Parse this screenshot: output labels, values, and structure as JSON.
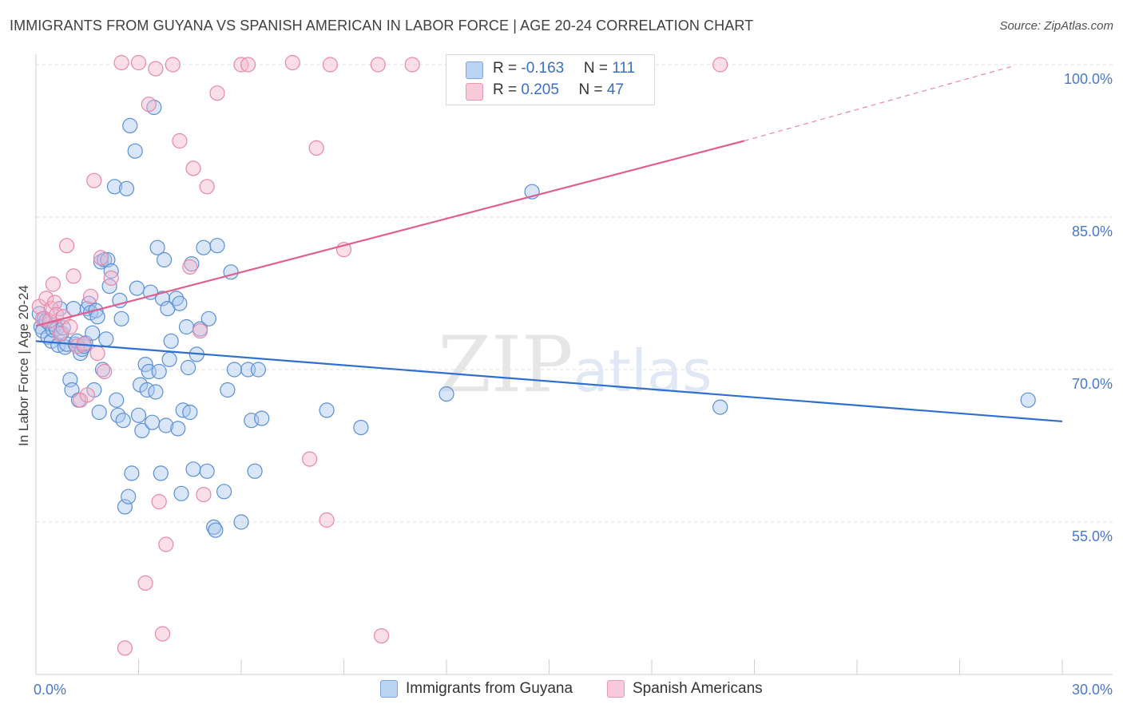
{
  "title": "IMMIGRANTS FROM GUYANA VS SPANISH AMERICAN IN LABOR FORCE | AGE 20-24 CORRELATION CHART",
  "source": "Source: ZipAtlas.com",
  "watermark": "ZIPatlas",
  "colors": {
    "blue_fill": "#a9c8f0",
    "blue_stroke": "#5b8fd6",
    "blue_line": "#2f6fd0",
    "pink_fill": "#f5b8cc",
    "pink_stroke": "#e887a7",
    "pink_line": "#e05f8d",
    "axis_text": "#4a78c8"
  },
  "legend": {
    "rows": [
      {
        "r_label": "R = ",
        "r_value": "-0.163",
        "n_label": "N = ",
        "n_value": "111"
      },
      {
        "r_label": "R = ",
        "r_value": "0.205",
        "n_label": "N = ",
        "n_value": "47"
      }
    ]
  },
  "bottom_legend": [
    "Immigrants from Guyana",
    "Spanish Americans"
  ],
  "chart_data": {
    "type": "scatter",
    "xlabel": "",
    "ylabel": "In Labor Force | Age 20-24",
    "xlim": [
      0,
      30
    ],
    "ylim": [
      40,
      102
    ],
    "x_tick_labels": [
      "0.0%",
      "30.0%"
    ],
    "y_ticks": [
      55,
      70,
      85,
      100
    ],
    "y_tick_labels": [
      "55.0%",
      "70.0%",
      "85.0%",
      "100.0%"
    ],
    "grid": "horizontal dashed",
    "legend_position": "top-center",
    "series": [
      {
        "name": "Immigrants from Guyana",
        "r": -0.163,
        "n": 111,
        "trend": {
          "x": [
            0,
            30
          ],
          "y": [
            72.8,
            64.9
          ],
          "dashed_after": null
        },
        "points": [
          [
            0.1,
            75.5
          ],
          [
            0.15,
            74.2
          ],
          [
            0.2,
            73.8
          ],
          [
            0.25,
            75.0
          ],
          [
            0.3,
            74.8
          ],
          [
            0.35,
            73.2
          ],
          [
            0.4,
            74.5
          ],
          [
            0.45,
            72.8
          ],
          [
            0.5,
            73.9
          ],
          [
            0.55,
            74.4
          ],
          [
            0.6,
            74.0
          ],
          [
            0.65,
            72.4
          ],
          [
            0.7,
            76.0
          ],
          [
            0.75,
            73.6
          ],
          [
            0.8,
            74.1
          ],
          [
            0.85,
            72.2
          ],
          [
            0.9,
            72.5
          ],
          [
            1.0,
            69.0
          ],
          [
            1.05,
            68.0
          ],
          [
            1.1,
            76.0
          ],
          [
            1.15,
            72.5
          ],
          [
            1.2,
            72.8
          ],
          [
            1.25,
            67.0
          ],
          [
            1.3,
            71.6
          ],
          [
            1.35,
            72.0
          ],
          [
            1.4,
            72.3
          ],
          [
            1.45,
            72.6
          ],
          [
            1.5,
            76.0
          ],
          [
            1.55,
            76.5
          ],
          [
            1.6,
            75.6
          ],
          [
            1.65,
            73.6
          ],
          [
            1.7,
            68.0
          ],
          [
            1.75,
            75.8
          ],
          [
            1.8,
            75.2
          ],
          [
            1.85,
            65.8
          ],
          [
            1.9,
            80.6
          ],
          [
            1.95,
            70.0
          ],
          [
            2.0,
            80.8
          ],
          [
            2.05,
            73.0
          ],
          [
            2.1,
            80.8
          ],
          [
            2.15,
            78.2
          ],
          [
            2.2,
            79.7
          ],
          [
            2.3,
            88.0
          ],
          [
            2.35,
            67.0
          ],
          [
            2.4,
            65.5
          ],
          [
            2.45,
            76.8
          ],
          [
            2.5,
            75.0
          ],
          [
            2.55,
            65.0
          ],
          [
            2.6,
            56.5
          ],
          [
            2.65,
            87.8
          ],
          [
            2.7,
            57.5
          ],
          [
            2.75,
            94.0
          ],
          [
            2.8,
            59.8
          ],
          [
            2.9,
            91.5
          ],
          [
            2.95,
            78.0
          ],
          [
            3.0,
            65.5
          ],
          [
            3.05,
            68.5
          ],
          [
            3.1,
            64.0
          ],
          [
            3.2,
            70.5
          ],
          [
            3.25,
            68.0
          ],
          [
            3.3,
            69.8
          ],
          [
            3.35,
            77.6
          ],
          [
            3.4,
            64.8
          ],
          [
            3.45,
            95.8
          ],
          [
            3.5,
            67.8
          ],
          [
            3.55,
            82.0
          ],
          [
            3.6,
            69.8
          ],
          [
            3.65,
            59.8
          ],
          [
            3.7,
            77.0
          ],
          [
            3.75,
            80.8
          ],
          [
            3.8,
            64.5
          ],
          [
            3.85,
            76.0
          ],
          [
            3.9,
            71.0
          ],
          [
            3.95,
            72.8
          ],
          [
            4.1,
            77.0
          ],
          [
            4.15,
            64.2
          ],
          [
            4.2,
            76.5
          ],
          [
            4.25,
            57.8
          ],
          [
            4.3,
            66.0
          ],
          [
            4.4,
            74.2
          ],
          [
            4.45,
            70.2
          ],
          [
            4.5,
            65.8
          ],
          [
            4.55,
            80.4
          ],
          [
            4.6,
            60.2
          ],
          [
            4.7,
            71.5
          ],
          [
            4.8,
            74.0
          ],
          [
            4.9,
            82.0
          ],
          [
            5.0,
            60.0
          ],
          [
            5.05,
            75.0
          ],
          [
            5.2,
            54.5
          ],
          [
            5.25,
            54.2
          ],
          [
            5.3,
            82.2
          ],
          [
            5.5,
            58.0
          ],
          [
            5.6,
            68.0
          ],
          [
            5.7,
            79.6
          ],
          [
            5.8,
            70.0
          ],
          [
            6.0,
            55.0
          ],
          [
            6.2,
            70.0
          ],
          [
            6.3,
            65.0
          ],
          [
            6.4,
            60.0
          ],
          [
            6.5,
            70.0
          ],
          [
            6.6,
            65.2
          ],
          [
            8.5,
            66.0
          ],
          [
            9.5,
            64.3
          ],
          [
            12.0,
            67.6
          ],
          [
            14.5,
            87.5
          ],
          [
            20.0,
            66.3
          ],
          [
            29.0,
            67.0
          ]
        ]
      },
      {
        "name": "Spanish Americans",
        "r": 0.205,
        "n": 47,
        "trend": {
          "x": [
            0,
            20.7
          ],
          "y": [
            74.3,
            92.5
          ],
          "dashed_after": [
            20.7,
            28.5,
            92.5,
            99.8
          ]
        },
        "points": [
          [
            0.1,
            76.2
          ],
          [
            0.2,
            75.0
          ],
          [
            0.3,
            77.0
          ],
          [
            0.4,
            74.8
          ],
          [
            0.45,
            76.0
          ],
          [
            0.5,
            78.4
          ],
          [
            0.55,
            76.6
          ],
          [
            0.6,
            75.4
          ],
          [
            0.7,
            73.5
          ],
          [
            0.8,
            75.2
          ],
          [
            0.9,
            82.2
          ],
          [
            1.0,
            74.2
          ],
          [
            1.1,
            79.2
          ],
          [
            1.2,
            72.3
          ],
          [
            1.3,
            67.0
          ],
          [
            1.4,
            72.5
          ],
          [
            1.5,
            67.5
          ],
          [
            1.6,
            77.2
          ],
          [
            1.7,
            88.6
          ],
          [
            1.8,
            71.6
          ],
          [
            1.9,
            81.0
          ],
          [
            2.0,
            69.8
          ],
          [
            2.2,
            79.0
          ],
          [
            2.5,
            100.2
          ],
          [
            2.6,
            42.6
          ],
          [
            3.0,
            100.2
          ],
          [
            3.2,
            49.0
          ],
          [
            3.3,
            96.1
          ],
          [
            3.5,
            99.6
          ],
          [
            3.6,
            57.0
          ],
          [
            3.7,
            44.0
          ],
          [
            3.8,
            52.8
          ],
          [
            4.0,
            100.0
          ],
          [
            4.2,
            92.5
          ],
          [
            4.5,
            80.1
          ],
          [
            4.6,
            89.8
          ],
          [
            4.8,
            73.8
          ],
          [
            4.9,
            57.7
          ],
          [
            5.0,
            88.0
          ],
          [
            5.3,
            97.2
          ],
          [
            6.0,
            100.0
          ],
          [
            6.2,
            100.0
          ],
          [
            7.5,
            100.2
          ],
          [
            8.0,
            61.2
          ],
          [
            8.2,
            91.8
          ],
          [
            8.5,
            55.2
          ],
          [
            8.6,
            100.0
          ],
          [
            9.0,
            81.8
          ],
          [
            10.0,
            100.0
          ],
          [
            10.1,
            43.8
          ],
          [
            11.0,
            100.0
          ],
          [
            20.0,
            100.0
          ]
        ]
      }
    ]
  }
}
